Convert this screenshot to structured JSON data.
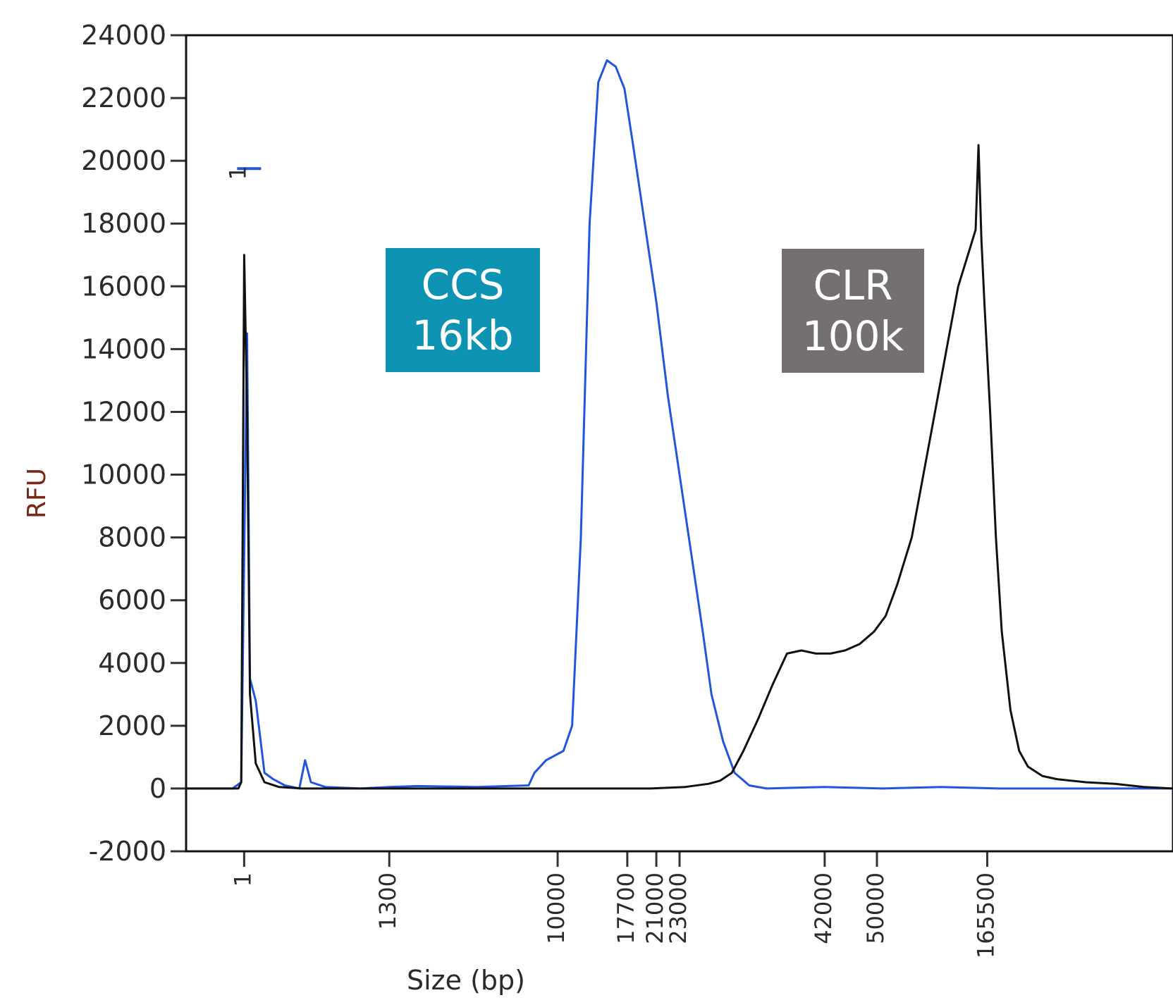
{
  "chart_data": {
    "type": "line",
    "title": "",
    "xlabel": "Size (bp)",
    "ylabel": "RFU",
    "ylim": [
      -2000,
      24000
    ],
    "y_ticks": [
      24000,
      22000,
      20000,
      18000,
      16000,
      14000,
      12000,
      10000,
      8000,
      6000,
      4000,
      2000,
      0,
      -2000
    ],
    "x_ticks": [
      "1",
      "1300",
      "10000",
      "17700",
      "21000",
      "23000",
      "42000",
      "50000",
      "165500"
    ],
    "x_tick_pos": [
      1.0,
      3.5,
      6.4,
      7.6,
      8.1,
      8.5,
      11.0,
      11.9,
      13.8
    ],
    "xlim": [
      0,
      17
    ],
    "marker_label": "1",
    "grid": false,
    "series": [
      {
        "color": "#2255dd",
        "points": [
          [
            0,
            0
          ],
          [
            0.8,
            0
          ],
          [
            0.95,
            200
          ],
          [
            1.05,
            14500
          ],
          [
            1.1,
            3500
          ],
          [
            1.2,
            2800
          ],
          [
            1.35,
            500
          ],
          [
            1.5,
            300
          ],
          [
            1.7,
            100
          ],
          [
            1.95,
            0
          ],
          [
            2.05,
            900
          ],
          [
            2.15,
            200
          ],
          [
            2.4,
            50
          ],
          [
            3,
            0
          ],
          [
            3.5,
            50
          ],
          [
            4,
            80
          ],
          [
            5,
            50
          ],
          [
            5.9,
            100
          ],
          [
            6.0,
            500
          ],
          [
            6.2,
            900
          ],
          [
            6.5,
            1200
          ],
          [
            6.65,
            2000
          ],
          [
            6.8,
            8000
          ],
          [
            6.95,
            18000
          ],
          [
            7.1,
            22500
          ],
          [
            7.25,
            23200
          ],
          [
            7.4,
            23000
          ],
          [
            7.55,
            22300
          ],
          [
            7.7,
            20500
          ],
          [
            7.9,
            18000
          ],
          [
            8.1,
            15500
          ],
          [
            8.3,
            12500
          ],
          [
            8.5,
            10000
          ],
          [
            8.7,
            7500
          ],
          [
            8.9,
            5000
          ],
          [
            9.05,
            3000
          ],
          [
            9.25,
            1500
          ],
          [
            9.45,
            500
          ],
          [
            9.7,
            100
          ],
          [
            10,
            0
          ],
          [
            11,
            50
          ],
          [
            12,
            0
          ],
          [
            13,
            50
          ],
          [
            14,
            0
          ],
          [
            15,
            0
          ],
          [
            16,
            0
          ],
          [
            17,
            0
          ]
        ]
      },
      {
        "color": "#111111",
        "points": [
          [
            0,
            0
          ],
          [
            0.9,
            0
          ],
          [
            0.95,
            200
          ],
          [
            1.0,
            17000
          ],
          [
            1.05,
            12000
          ],
          [
            1.1,
            3000
          ],
          [
            1.2,
            800
          ],
          [
            1.35,
            200
          ],
          [
            1.6,
            50
          ],
          [
            2,
            0
          ],
          [
            3,
            0
          ],
          [
            5,
            0
          ],
          [
            7,
            0
          ],
          [
            8,
            0
          ],
          [
            8.6,
            50
          ],
          [
            9,
            150
          ],
          [
            9.2,
            250
          ],
          [
            9.4,
            500
          ],
          [
            9.6,
            1200
          ],
          [
            9.85,
            2200
          ],
          [
            10.1,
            3300
          ],
          [
            10.35,
            4300
          ],
          [
            10.6,
            4400
          ],
          [
            10.85,
            4300
          ],
          [
            11.1,
            4300
          ],
          [
            11.35,
            4400
          ],
          [
            11.6,
            4600
          ],
          [
            11.85,
            5000
          ],
          [
            12.05,
            5500
          ],
          [
            12.25,
            6500
          ],
          [
            12.5,
            8000
          ],
          [
            12.7,
            10000
          ],
          [
            12.9,
            12000
          ],
          [
            13.1,
            14000
          ],
          [
            13.3,
            16000
          ],
          [
            13.5,
            17200
          ],
          [
            13.6,
            17800
          ],
          [
            13.65,
            20500
          ],
          [
            13.7,
            17500
          ],
          [
            13.75,
            15500
          ],
          [
            13.85,
            12000
          ],
          [
            13.95,
            8000
          ],
          [
            14.05,
            5000
          ],
          [
            14.2,
            2500
          ],
          [
            14.35,
            1200
          ],
          [
            14.5,
            700
          ],
          [
            14.75,
            400
          ],
          [
            15,
            300
          ],
          [
            15.5,
            200
          ],
          [
            16,
            150
          ],
          [
            16.5,
            50
          ],
          [
            17,
            0
          ]
        ]
      }
    ]
  },
  "annotations": [
    {
      "line1": "CCS",
      "line2": "16kb",
      "color": "#0e93b3"
    },
    {
      "line1": "CLR",
      "line2": "100k",
      "color": "#747070"
    }
  ]
}
